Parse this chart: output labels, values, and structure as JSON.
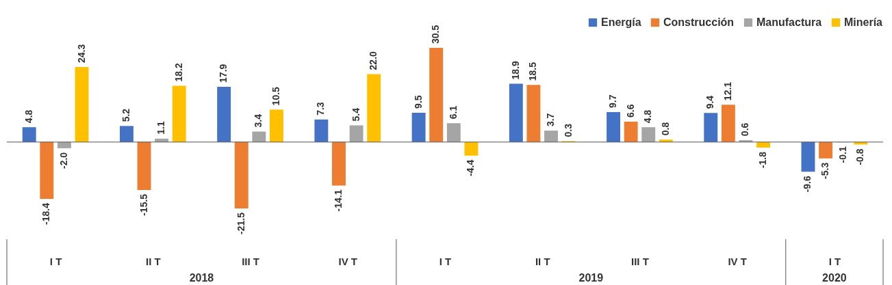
{
  "chart_data": {
    "type": "bar",
    "categories": [
      "I T",
      "II T",
      "III T",
      "IV T",
      "I T",
      "II T",
      "III T",
      "IV T",
      "I T"
    ],
    "series": [
      {
        "name": "Energía",
        "color": "#4472c4",
        "values": [
          4.8,
          5.2,
          17.9,
          7.3,
          9.5,
          18.9,
          9.7,
          9.4,
          -9.6
        ],
        "value_labels": [
          "4.8",
          "5.2",
          "17.9",
          "7.3",
          "9.5",
          "18.9",
          "9.7",
          "9.4",
          "-9.6"
        ]
      },
      {
        "name": "Construcción",
        "color": "#ed7d31",
        "values": [
          -18.4,
          -15.5,
          -21.5,
          -14.1,
          30.5,
          18.5,
          6.6,
          12.1,
          -5.3
        ],
        "value_labels": [
          "-18.4",
          "-15.5",
          "-21.5",
          "-14.1",
          "30.5",
          "18.5",
          "6.6",
          "12.1",
          "-5.3"
        ]
      },
      {
        "name": "Manufactura",
        "color": "#a5a5a5",
        "values": [
          -2.0,
          1.1,
          3.4,
          5.4,
          6.1,
          3.7,
          4.8,
          0.6,
          -0.1
        ],
        "value_labels": [
          "-2.0",
          "1.1",
          "3.4",
          "5.4",
          "6.1",
          "3.7",
          "4.8",
          "0.6",
          "-0.1"
        ]
      },
      {
        "name": "Minería",
        "color": "#ffc000",
        "values": [
          24.3,
          18.2,
          10.5,
          22.0,
          -4.4,
          0.3,
          0.8,
          -1.8,
          -0.8
        ],
        "value_labels": [
          "24.3",
          "18.2",
          "10.5",
          "22.0",
          "-4.4",
          "0.3",
          "0.8",
          "-1.8",
          "-0.8"
        ]
      }
    ],
    "legend": "top right",
    "annotations": [
      "2018",
      "2019",
      "2020"
    ]
  }
}
